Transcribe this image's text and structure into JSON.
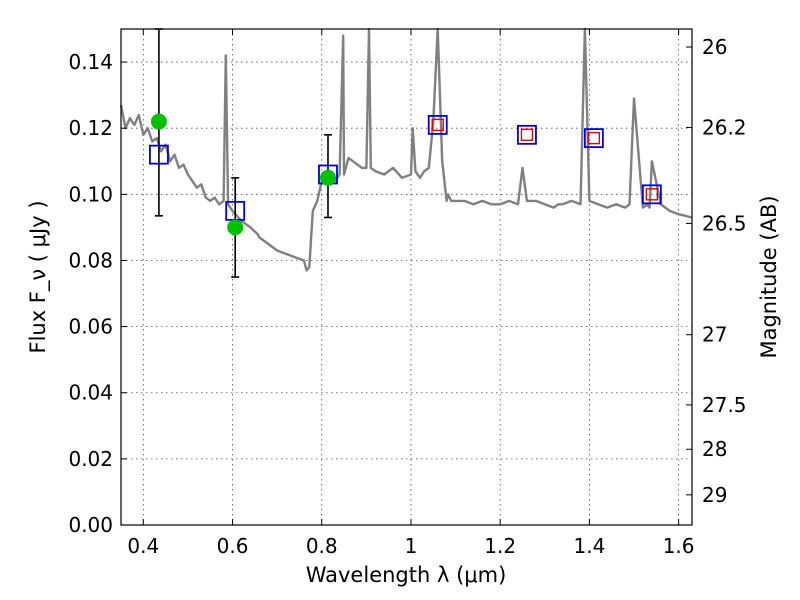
{
  "chart_data": {
    "type": "scatter",
    "title": "",
    "xlabel": "Wavelength  λ (μm)",
    "ylabel": "Flux  F_ν  ( μJy )",
    "ylabel_right": "Magnitude (AB)",
    "xlim": [
      0.35,
      1.63
    ],
    "ylim": [
      0.0,
      0.15
    ],
    "x_ticks": [
      0.4,
      0.6,
      0.8,
      1.0,
      1.2,
      1.4,
      1.6
    ],
    "x_tick_labels": [
      "0.4",
      "0.6",
      "0.8",
      "1",
      "1.2",
      "1.4",
      "1.6"
    ],
    "y_ticks": [
      0.0,
      0.02,
      0.04,
      0.06,
      0.08,
      0.1,
      0.12,
      0.14
    ],
    "y_tick_labels": [
      "0.00",
      "0.02",
      "0.04",
      "0.06",
      "0.08",
      "0.10",
      "0.12",
      "0.14"
    ],
    "right_ticks": [
      {
        "mag": 26,
        "label": "26"
      },
      {
        "mag": 26.2,
        "label": "26.2"
      },
      {
        "mag": 26.5,
        "label": "26.5"
      },
      {
        "mag": 27,
        "label": "27"
      },
      {
        "mag": 27.5,
        "label": "27.5"
      },
      {
        "mag": 28,
        "label": "28"
      },
      {
        "mag": 29,
        "label": "29"
      }
    ],
    "grid": true,
    "series": [
      {
        "name": "observed photometry (green points with error bars)",
        "x": [
          0.435,
          0.606,
          0.814
        ],
        "y": [
          0.122,
          0.09,
          0.105
        ],
        "yerr_low": [
          0.0935,
          0.075,
          0.093
        ],
        "yerr_high": [
          0.15,
          0.105,
          0.118
        ]
      },
      {
        "name": "model photometry (blue squares)",
        "x": [
          0.435,
          0.606,
          0.814,
          1.06,
          1.26,
          1.41,
          1.54
        ],
        "y": [
          0.112,
          0.095,
          0.106,
          0.121,
          0.118,
          0.117,
          0.1
        ]
      },
      {
        "name": "observed photometry (small red squares)",
        "x": [
          1.06,
          1.26,
          1.41,
          1.54
        ],
        "y": [
          0.121,
          0.118,
          0.117,
          0.1
        ]
      },
      {
        "name": "model spectrum (grey line)",
        "x": [
          0.35,
          0.36,
          0.37,
          0.38,
          0.39,
          0.4,
          0.41,
          0.42,
          0.43,
          0.44,
          0.45,
          0.46,
          0.47,
          0.48,
          0.49,
          0.5,
          0.51,
          0.52,
          0.53,
          0.54,
          0.55,
          0.56,
          0.57,
          0.58,
          0.585,
          0.59,
          0.6,
          0.62,
          0.64,
          0.656,
          0.66,
          0.68,
          0.7,
          0.72,
          0.74,
          0.76,
          0.766,
          0.772,
          0.78,
          0.79,
          0.8,
          0.81,
          0.82,
          0.83,
          0.84,
          0.848,
          0.85,
          0.86,
          0.87,
          0.88,
          0.89,
          0.9,
          0.906,
          0.91,
          0.92,
          0.94,
          0.96,
          0.98,
          1.0,
          1.004,
          1.01,
          1.02,
          1.03,
          1.04,
          1.05,
          1.06,
          1.07,
          1.08,
          1.083,
          1.09,
          1.1,
          1.12,
          1.14,
          1.16,
          1.18,
          1.2,
          1.22,
          1.24,
          1.25,
          1.26,
          1.28,
          1.3,
          1.32,
          1.33,
          1.34,
          1.36,
          1.38,
          1.39,
          1.4,
          1.42,
          1.44,
          1.46,
          1.48,
          1.49,
          1.5,
          1.52,
          1.53,
          1.535,
          1.54,
          1.56,
          1.58,
          1.6,
          1.63
        ],
        "y": [
          0.127,
          0.12,
          0.123,
          0.121,
          0.124,
          0.118,
          0.12,
          0.116,
          0.117,
          0.113,
          0.115,
          0.11,
          0.112,
          0.108,
          0.109,
          0.106,
          0.104,
          0.102,
          0.103,
          0.099,
          0.098,
          0.099,
          0.097,
          0.098,
          0.142,
          0.097,
          0.095,
          0.092,
          0.09,
          0.088,
          0.087,
          0.085,
          0.083,
          0.082,
          0.081,
          0.08,
          0.077,
          0.078,
          0.095,
          0.098,
          0.104,
          0.105,
          0.103,
          0.104,
          0.106,
          0.148,
          0.106,
          0.111,
          0.11,
          0.109,
          0.108,
          0.108,
          0.15,
          0.108,
          0.107,
          0.106,
          0.108,
          0.105,
          0.106,
          0.12,
          0.107,
          0.105,
          0.107,
          0.108,
          0.122,
          0.15,
          0.11,
          0.098,
          0.1,
          0.098,
          0.098,
          0.098,
          0.097,
          0.098,
          0.097,
          0.097,
          0.098,
          0.097,
          0.108,
          0.098,
          0.098,
          0.097,
          0.096,
          0.097,
          0.097,
          0.098,
          0.097,
          0.15,
          0.098,
          0.097,
          0.096,
          0.097,
          0.096,
          0.097,
          0.129,
          0.096,
          0.097,
          0.096,
          0.11,
          0.097,
          0.095,
          0.094,
          0.093
        ]
      }
    ]
  }
}
